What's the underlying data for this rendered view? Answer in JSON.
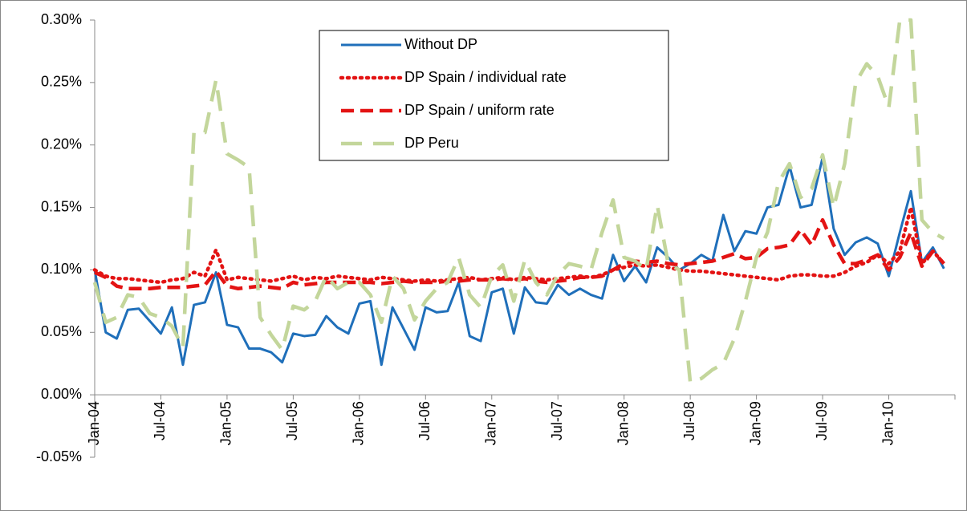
{
  "chart_data": {
    "type": "line",
    "categories": [
      "Jan-04",
      null,
      null,
      null,
      null,
      null,
      "Jul-04",
      null,
      null,
      null,
      null,
      null,
      "Jan-05",
      null,
      null,
      null,
      null,
      null,
      "Jul-05",
      null,
      null,
      null,
      null,
      null,
      "Jan-06",
      null,
      null,
      null,
      null,
      null,
      "Jul-06",
      null,
      null,
      null,
      null,
      null,
      "Jan-07",
      null,
      null,
      null,
      null,
      null,
      "Jul-07",
      null,
      null,
      null,
      null,
      null,
      "Jan-08",
      null,
      null,
      null,
      null,
      null,
      "Jul-08",
      null,
      null,
      null,
      null,
      null,
      "Jan-09",
      null,
      null,
      null,
      null,
      null,
      "Jul-09",
      null,
      null,
      null,
      null,
      null,
      "Jan-10",
      null,
      null,
      null,
      null,
      null
    ],
    "series": [
      {
        "name": "Without DP",
        "color": "#1f6fba",
        "style": "solid",
        "values": [
          0.1,
          0.05,
          0.045,
          0.068,
          0.069,
          0.059,
          0.049,
          0.07,
          0.024,
          0.072,
          0.074,
          0.098,
          0.056,
          0.054,
          0.037,
          0.037,
          0.034,
          0.026,
          0.049,
          0.047,
          0.048,
          0.063,
          0.054,
          0.049,
          0.073,
          0.075,
          0.024,
          0.07,
          0.053,
          0.036,
          0.07,
          0.066,
          0.067,
          0.09,
          0.047,
          0.043,
          0.082,
          0.085,
          0.049,
          0.086,
          0.074,
          0.073,
          0.088,
          0.08,
          0.085,
          0.08,
          0.077,
          0.112,
          0.091,
          0.103,
          0.09,
          0.118,
          0.11,
          0.1,
          0.105,
          0.112,
          0.107,
          0.144,
          0.115,
          0.131,
          0.129,
          0.15,
          0.152,
          0.183,
          0.15,
          0.152,
          0.19,
          0.133,
          0.112,
          0.122,
          0.126,
          0.121,
          0.095,
          0.13,
          0.163,
          0.106,
          0.118,
          0.101
        ]
      },
      {
        "name": "DP Spain / individual rate",
        "color": "#e31313",
        "style": "dotted",
        "values": [
          0.1,
          0.095,
          0.093,
          0.093,
          0.092,
          0.091,
          0.09,
          0.092,
          0.093,
          0.098,
          0.095,
          0.116,
          0.092,
          0.094,
          0.093,
          0.092,
          0.091,
          0.093,
          0.095,
          0.092,
          0.094,
          0.093,
          0.095,
          0.094,
          0.093,
          0.092,
          0.094,
          0.093,
          0.092,
          0.091,
          0.092,
          0.091,
          0.092,
          0.093,
          0.094,
          0.092,
          0.093,
          0.094,
          0.092,
          0.094,
          0.093,
          0.092,
          0.093,
          0.094,
          0.095,
          0.094,
          0.096,
          0.1,
          0.102,
          0.104,
          0.103,
          0.104,
          0.102,
          0.1,
          0.099,
          0.099,
          0.098,
          0.097,
          0.096,
          0.095,
          0.094,
          0.093,
          0.092,
          0.095,
          0.096,
          0.096,
          0.095,
          0.095,
          0.098,
          0.103,
          0.106,
          0.112,
          0.105,
          0.115,
          0.15,
          0.105,
          0.115,
          0.105
        ]
      },
      {
        "name": "DP Spain / uniform rate",
        "color": "#e31313",
        "style": "dashed",
        "values": [
          0.098,
          0.094,
          0.087,
          0.085,
          0.085,
          0.085,
          0.086,
          0.086,
          0.086,
          0.087,
          0.088,
          0.099,
          0.087,
          0.085,
          0.086,
          0.087,
          0.086,
          0.085,
          0.09,
          0.088,
          0.089,
          0.09,
          0.09,
          0.09,
          0.09,
          0.09,
          0.089,
          0.09,
          0.091,
          0.09,
          0.09,
          0.09,
          0.091,
          0.091,
          0.092,
          0.092,
          0.092,
          0.093,
          0.092,
          0.093,
          0.091,
          0.09,
          0.091,
          0.092,
          0.094,
          0.094,
          0.095,
          0.1,
          0.105,
          0.107,
          0.106,
          0.107,
          0.105,
          0.104,
          0.105,
          0.106,
          0.107,
          0.11,
          0.113,
          0.109,
          0.11,
          0.117,
          0.118,
          0.12,
          0.132,
          0.12,
          0.14,
          0.12,
          0.105,
          0.105,
          0.108,
          0.112,
          0.1,
          0.11,
          0.13,
          0.103,
          0.115,
          0.105
        ]
      },
      {
        "name": "DP Peru",
        "color": "#c3d69b",
        "style": "long-dashed",
        "values": [
          0.09,
          0.058,
          0.062,
          0.08,
          0.078,
          0.065,
          0.062,
          0.055,
          0.038,
          0.21,
          0.21,
          0.252,
          0.193,
          0.188,
          0.182,
          0.062,
          0.048,
          0.036,
          0.071,
          0.068,
          0.075,
          0.095,
          0.085,
          0.09,
          0.09,
          0.08,
          0.058,
          0.095,
          0.085,
          0.06,
          0.075,
          0.085,
          0.09,
          0.11,
          0.08,
          0.07,
          0.095,
          0.104,
          0.075,
          0.108,
          0.09,
          0.08,
          0.096,
          0.105,
          0.103,
          0.1,
          0.13,
          0.156,
          0.11,
          0.107,
          0.1,
          0.152,
          0.105,
          0.1,
          0.01,
          0.013,
          0.02,
          0.025,
          0.045,
          0.075,
          0.11,
          0.13,
          0.17,
          0.185,
          0.158,
          0.165,
          0.192,
          0.15,
          0.185,
          0.25,
          0.265,
          0.255,
          0.23,
          0.3,
          0.3,
          0.14,
          0.13,
          0.125
        ]
      }
    ],
    "ylim": [
      -0.05,
      0.3
    ],
    "yticks": [
      {
        "value": -0.05,
        "label": "-0.05%"
      },
      {
        "value": 0,
        "label": "0.00%"
      },
      {
        "value": 0.05,
        "label": "0.05%"
      },
      {
        "value": 0.1,
        "label": "0.10%"
      },
      {
        "value": 0.15,
        "label": "0.15%"
      },
      {
        "value": 0.2,
        "label": "0.20%"
      },
      {
        "value": 0.25,
        "label": "0.25%"
      },
      {
        "value": 0.3,
        "label": "0.30%"
      }
    ]
  }
}
